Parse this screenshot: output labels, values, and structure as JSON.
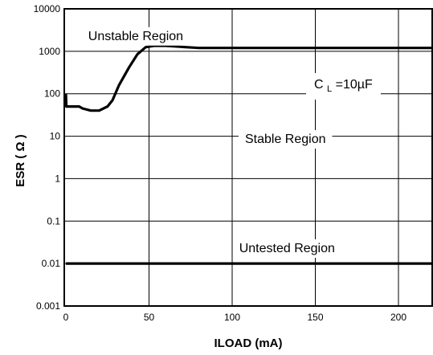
{
  "chart_data": {
    "type": "line",
    "xlabel": "ILOAD (mA)",
    "ylabel": "ESR ( Ω )",
    "y_scale": "log",
    "xlim": [
      0,
      220
    ],
    "ylim": [
      0.001,
      10000
    ],
    "x_ticks": [
      0,
      50,
      100,
      150,
      200
    ],
    "x_tick_labels": [
      "0",
      "50",
      "100",
      "150",
      "200"
    ],
    "y_ticks": [
      0.001,
      0.01,
      0.1,
      1,
      10,
      100,
      1000,
      10000
    ],
    "y_tick_labels": [
      "0.001",
      "0.01",
      "0.1",
      "1",
      "10",
      "100",
      "1000",
      "10000"
    ],
    "grid": true,
    "capacitance_label": {
      "prefix": "C",
      "subscript": "L",
      "suffix": "=10µF"
    },
    "region_labels": [
      {
        "text": "Unstable Region",
        "x": 42,
        "y": 2400
      },
      {
        "text": "Stable Region",
        "x": 132,
        "y": 9
      },
      {
        "text": "Untested Region",
        "x": 133,
        "y": 0.024
      }
    ],
    "series": [
      {
        "points": [
          [
            0,
            100
          ],
          [
            0.3,
            50
          ],
          [
            8,
            50
          ],
          [
            10,
            45
          ],
          [
            15,
            40
          ],
          [
            20,
            40
          ],
          [
            25,
            50
          ],
          [
            28,
            70
          ],
          [
            32,
            160
          ],
          [
            38,
            420
          ],
          [
            43,
            850
          ],
          [
            48,
            1250
          ],
          [
            53,
            1350
          ],
          [
            60,
            1350
          ],
          [
            66,
            1300
          ],
          [
            72,
            1250
          ],
          [
            80,
            1200
          ],
          [
            223,
            1200
          ]
        ]
      },
      {
        "points": [
          [
            0,
            0.01
          ],
          [
            223,
            0.01
          ]
        ]
      }
    ]
  }
}
